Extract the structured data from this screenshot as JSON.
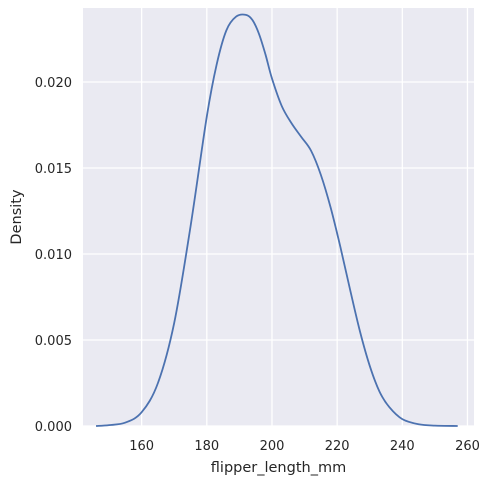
{
  "chart_data": {
    "type": "line",
    "title": "",
    "xlabel": "flipper_length_mm",
    "ylabel": "Density",
    "xlim": [
      142,
      262
    ],
    "ylim": [
      0,
      0.0243
    ],
    "xticks": [
      160,
      180,
      200,
      220,
      240,
      260
    ],
    "xtick_labels": [
      "160",
      "180",
      "200",
      "220",
      "240",
      "260"
    ],
    "yticks": [
      0,
      0.005,
      0.01,
      0.015,
      0.02
    ],
    "ytick_labels": [
      "0.000",
      "0.005",
      "0.010",
      "0.015",
      "0.020"
    ],
    "grid": true,
    "background": "#EAEAF2",
    "grid_color": "#FFFFFF",
    "line_color": "#4C72B0",
    "series": [
      {
        "x": [
          146,
          150,
          155,
          160,
          165,
          170,
          175,
          180,
          183,
          186,
          189,
          192,
          194,
          196,
          198,
          200,
          203,
          206,
          209,
          212,
          215,
          218,
          221,
          224,
          227,
          230,
          233,
          236,
          240,
          245,
          250,
          257
        ],
        "y": [
          0.0,
          5e-05,
          0.0002,
          0.0008,
          0.0025,
          0.006,
          0.0116,
          0.018,
          0.021,
          0.023,
          0.0238,
          0.0239,
          0.0236,
          0.0228,
          0.0216,
          0.0202,
          0.0186,
          0.0176,
          0.0168,
          0.016,
          0.0146,
          0.0127,
          0.0104,
          0.0079,
          0.0055,
          0.0035,
          0.002,
          0.0011,
          0.0004,
          0.0001,
          2e-05,
          0.0
        ]
      }
    ]
  }
}
